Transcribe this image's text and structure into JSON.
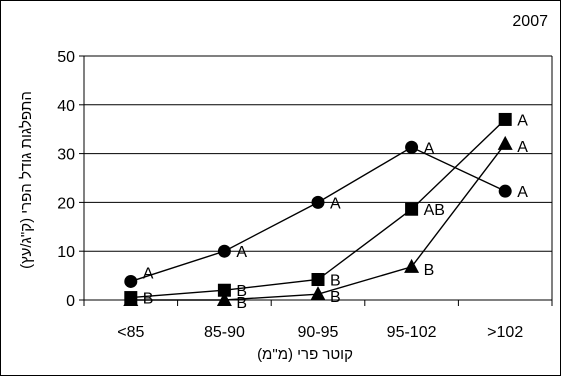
{
  "chart_data": {
    "type": "line",
    "title": "2007",
    "xlabel": "קוטר פרי (מ\"מ)",
    "ylabel": "התפלגות גודל הפרי (ק\"ג/עץ)",
    "categories": [
      "<85",
      "85-90",
      "90-95",
      "95-102",
      ">102"
    ],
    "ylim": [
      0,
      50
    ],
    "yticks": [
      "0",
      "10",
      "20",
      "30",
      "40",
      "50"
    ],
    "grid": true,
    "legend": "none",
    "series": [
      {
        "marker": "circle",
        "values": [
          3.8,
          10,
          20,
          31.3,
          22.3
        ],
        "labels": [
          "A",
          "A",
          "A",
          "A",
          "A"
        ]
      },
      {
        "marker": "square",
        "values": [
          0.5,
          2,
          4.2,
          18.6,
          37
        ],
        "labels": [
          "B",
          "B",
          "B",
          "AB",
          "A"
        ]
      },
      {
        "marker": "triangle",
        "values": [
          0,
          0,
          1.2,
          6.8,
          32
        ],
        "labels": [
          "",
          "B",
          "B",
          "B",
          "A"
        ]
      }
    ]
  }
}
